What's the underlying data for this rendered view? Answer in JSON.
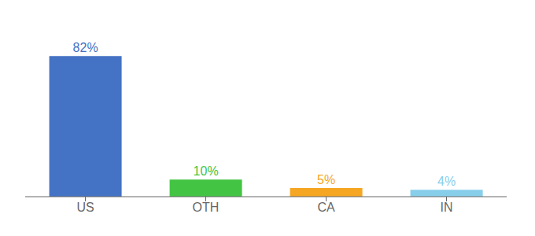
{
  "chart_data": {
    "type": "bar",
    "categories": [
      "US",
      "OTH",
      "CA",
      "IN"
    ],
    "values": [
      82,
      10,
      5,
      4
    ],
    "value_labels": [
      "82%",
      "10%",
      "5%",
      "4%"
    ],
    "data_labels": true,
    "colors": [
      "#4472c4",
      "#43c443",
      "#f5a623",
      "#87ceeb"
    ],
    "ylim": [
      0,
      100
    ],
    "tick_labels": "x",
    "grid": false
  }
}
